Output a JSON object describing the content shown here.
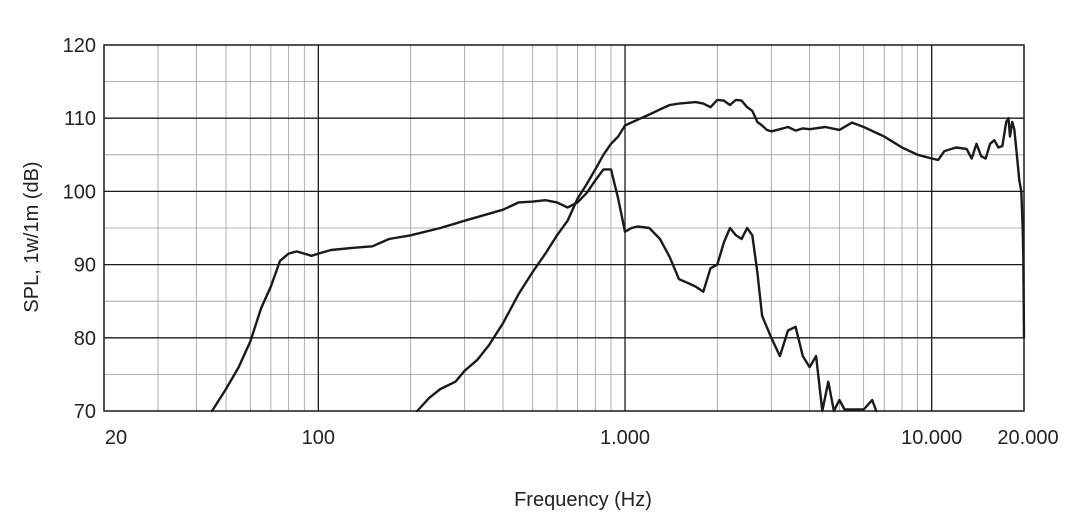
{
  "chart_data": {
    "type": "line",
    "xlabel": "Frequency (Hz)",
    "ylabel": "SPL, 1w/1m (dB)",
    "x_scale": "log",
    "xlim": [
      20,
      20000
    ],
    "ylim": [
      70,
      120
    ],
    "grid": true,
    "x_tick_labels": [
      {
        "value": 20,
        "label": "20"
      },
      {
        "value": 100,
        "label": "100"
      },
      {
        "value": 1000,
        "label": "1.000"
      },
      {
        "value": 10000,
        "label": "10.000"
      },
      {
        "value": 20000,
        "label": "20.000"
      }
    ],
    "y_tick_labels": [
      {
        "value": 70,
        "label": "70"
      },
      {
        "value": 80,
        "label": "80"
      },
      {
        "value": 90,
        "label": "90"
      },
      {
        "value": 100,
        "label": "100"
      },
      {
        "value": 110,
        "label": "110"
      },
      {
        "value": 120,
        "label": "120"
      }
    ],
    "series": [
      {
        "color": "#1a1a1a",
        "points": [
          [
            45,
            70
          ],
          [
            50,
            73
          ],
          [
            55,
            76
          ],
          [
            60,
            79.5
          ],
          [
            65,
            84
          ],
          [
            70,
            87
          ],
          [
            75,
            90.5
          ],
          [
            80,
            91.5
          ],
          [
            85,
            91.8
          ],
          [
            90,
            91.5
          ],
          [
            95,
            91.2
          ],
          [
            100,
            91.5
          ],
          [
            110,
            92
          ],
          [
            130,
            92.3
          ],
          [
            150,
            92.5
          ],
          [
            170,
            93.5
          ],
          [
            200,
            94
          ],
          [
            250,
            95
          ],
          [
            300,
            96
          ],
          [
            350,
            96.8
          ],
          [
            400,
            97.5
          ],
          [
            450,
            98.5
          ],
          [
            500,
            98.6
          ],
          [
            550,
            98.8
          ],
          [
            600,
            98.5
          ],
          [
            650,
            97.8
          ],
          [
            700,
            98.5
          ],
          [
            750,
            99.8
          ],
          [
            800,
            101.5
          ],
          [
            850,
            103
          ],
          [
            900,
            103
          ],
          [
            950,
            99
          ],
          [
            1000,
            94.5
          ],
          [
            1050,
            95
          ],
          [
            1100,
            95.2
          ],
          [
            1200,
            95
          ],
          [
            1300,
            93.5
          ],
          [
            1400,
            91
          ],
          [
            1500,
            88
          ],
          [
            1600,
            87.5
          ],
          [
            1700,
            87
          ],
          [
            1800,
            86.3
          ],
          [
            1900,
            89.5
          ],
          [
            2000,
            90
          ],
          [
            2100,
            93
          ],
          [
            2200,
            95
          ],
          [
            2300,
            94
          ],
          [
            2400,
            93.5
          ],
          [
            2500,
            95
          ],
          [
            2600,
            94
          ],
          [
            2700,
            89
          ],
          [
            2800,
            83
          ],
          [
            3000,
            80
          ],
          [
            3200,
            77.5
          ],
          [
            3400,
            81
          ],
          [
            3600,
            81.5
          ],
          [
            3800,
            77.5
          ],
          [
            4000,
            76
          ],
          [
            4200,
            77.5
          ],
          [
            4400,
            70
          ],
          [
            4600,
            74
          ],
          [
            4800,
            70
          ],
          [
            5000,
            71.5
          ],
          [
            5200,
            70.2
          ],
          [
            6000,
            70.2
          ],
          [
            6400,
            71.5
          ],
          [
            6600,
            70
          ]
        ]
      },
      {
        "color": "#1a1a1a",
        "points": [
          [
            210,
            70
          ],
          [
            230,
            71.8
          ],
          [
            250,
            73
          ],
          [
            280,
            74
          ],
          [
            300,
            75.5
          ],
          [
            330,
            77
          ],
          [
            360,
            79
          ],
          [
            400,
            82
          ],
          [
            450,
            86
          ],
          [
            500,
            89
          ],
          [
            550,
            91.5
          ],
          [
            600,
            94
          ],
          [
            650,
            96
          ],
          [
            700,
            99
          ],
          [
            750,
            101
          ],
          [
            800,
            103
          ],
          [
            850,
            105
          ],
          [
            900,
            106.5
          ],
          [
            950,
            107.5
          ],
          [
            1000,
            109
          ],
          [
            1100,
            109.8
          ],
          [
            1200,
            110.5
          ],
          [
            1300,
            111.2
          ],
          [
            1400,
            111.8
          ],
          [
            1500,
            112
          ],
          [
            1600,
            112.1
          ],
          [
            1700,
            112.2
          ],
          [
            1800,
            112
          ],
          [
            1900,
            111.5
          ],
          [
            2000,
            112.5
          ],
          [
            2100,
            112.4
          ],
          [
            2200,
            111.8
          ],
          [
            2300,
            112.5
          ],
          [
            2400,
            112.4
          ],
          [
            2500,
            111.5
          ],
          [
            2600,
            111
          ],
          [
            2700,
            109.5
          ],
          [
            2800,
            109
          ],
          [
            2900,
            108.4
          ],
          [
            3000,
            108.2
          ],
          [
            3200,
            108.5
          ],
          [
            3400,
            108.8
          ],
          [
            3600,
            108.3
          ],
          [
            3800,
            108.6
          ],
          [
            4000,
            108.5
          ],
          [
            4500,
            108.8
          ],
          [
            5000,
            108.4
          ],
          [
            5500,
            109.4
          ],
          [
            6000,
            108.8
          ],
          [
            7000,
            107.5
          ],
          [
            8000,
            106
          ],
          [
            9000,
            105
          ],
          [
            10000,
            104.5
          ],
          [
            10500,
            104.3
          ],
          [
            11000,
            105.5
          ],
          [
            12000,
            106
          ],
          [
            13000,
            105.8
          ],
          [
            13500,
            104.5
          ],
          [
            14000,
            106.5
          ],
          [
            14500,
            104.8
          ],
          [
            15000,
            104.5
          ],
          [
            15500,
            106.5
          ],
          [
            16000,
            107
          ],
          [
            16500,
            106
          ],
          [
            17000,
            106.2
          ],
          [
            17500,
            109.5
          ],
          [
            17800,
            110
          ],
          [
            18000,
            107.5
          ],
          [
            18300,
            109.5
          ],
          [
            18600,
            108.5
          ],
          [
            19000,
            104.5
          ],
          [
            19300,
            101.5
          ],
          [
            19600,
            100
          ],
          [
            19800,
            95
          ],
          [
            19900,
            91
          ],
          [
            20000,
            80
          ]
        ]
      }
    ]
  }
}
